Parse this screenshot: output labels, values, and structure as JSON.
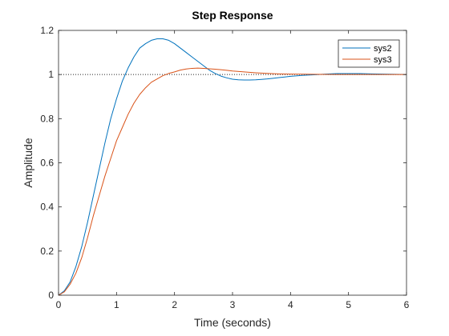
{
  "chart_data": {
    "type": "line",
    "title": "Step Response",
    "xlabel": "Time (seconds)",
    "ylabel": "Amplitude",
    "xlim": [
      0,
      6
    ],
    "ylim": [
      0,
      1.2
    ],
    "xticks": [
      0,
      1,
      2,
      3,
      4,
      5,
      6
    ],
    "yticks": [
      0,
      0.2,
      0.4,
      0.6,
      0.8,
      1,
      1.2
    ],
    "grid": false,
    "legend_position": "top-right",
    "reference_line": {
      "y": 1,
      "style": "dotted"
    },
    "series": [
      {
        "name": "sys2",
        "color": "#0072BD",
        "x": [
          0,
          0.1,
          0.2,
          0.3,
          0.4,
          0.5,
          0.6,
          0.7,
          0.8,
          0.9,
          1.0,
          1.1,
          1.2,
          1.3,
          1.4,
          1.5,
          1.6,
          1.7,
          1.8,
          1.9,
          2.0,
          2.1,
          2.2,
          2.3,
          2.4,
          2.5,
          2.6,
          2.7,
          2.8,
          2.9,
          3.0,
          3.1,
          3.2,
          3.3,
          3.4,
          3.5,
          3.6,
          3.7,
          3.8,
          3.9,
          4.0,
          4.2,
          4.4,
          4.6,
          4.8,
          5.0,
          5.2,
          5.4,
          5.6,
          5.8,
          6.0
        ],
        "y": [
          0,
          0.02,
          0.06,
          0.13,
          0.22,
          0.33,
          0.45,
          0.57,
          0.69,
          0.8,
          0.89,
          0.97,
          1.03,
          1.08,
          1.12,
          1.14,
          1.155,
          1.162,
          1.162,
          1.155,
          1.14,
          1.12,
          1.1,
          1.08,
          1.06,
          1.04,
          1.02,
          1.005,
          0.993,
          0.985,
          0.979,
          0.976,
          0.975,
          0.975,
          0.976,
          0.978,
          0.98,
          0.983,
          0.986,
          0.989,
          0.992,
          0.996,
          0.999,
          1.002,
          1.004,
          1.004,
          1.004,
          1.003,
          1.002,
          1.001,
          1.0
        ]
      },
      {
        "name": "sys3",
        "color": "#D95319",
        "x": [
          0,
          0.1,
          0.2,
          0.3,
          0.4,
          0.5,
          0.6,
          0.7,
          0.8,
          0.9,
          1.0,
          1.1,
          1.2,
          1.3,
          1.4,
          1.5,
          1.6,
          1.7,
          1.8,
          1.9,
          2.0,
          2.1,
          2.2,
          2.3,
          2.4,
          2.5,
          2.6,
          2.7,
          2.8,
          2.9,
          3.0,
          3.2,
          3.4,
          3.6,
          3.8,
          4.0,
          4.4,
          4.8,
          5.2,
          5.6,
          6.0
        ],
        "y": [
          0,
          0.015,
          0.05,
          0.1,
          0.17,
          0.26,
          0.36,
          0.45,
          0.54,
          0.62,
          0.7,
          0.76,
          0.82,
          0.87,
          0.91,
          0.94,
          0.965,
          0.98,
          0.995,
          1.005,
          1.012,
          1.02,
          1.025,
          1.028,
          1.029,
          1.028,
          1.026,
          1.024,
          1.022,
          1.019,
          1.016,
          1.012,
          1.008,
          1.005,
          1.003,
          1.002,
          1.001,
          1.0,
          1.0,
          1.0,
          1.0
        ]
      }
    ]
  }
}
